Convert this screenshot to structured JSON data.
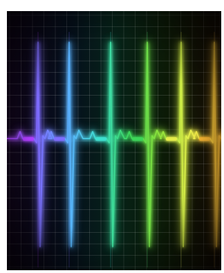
{
  "image": {
    "subject": "ecg-heartbeat-waveform",
    "background_color": "#050505",
    "grid_color": "#ffffff",
    "pulse_colors": [
      "#b03cff",
      "#7e6bff",
      "#5ab0ff",
      "#3ee0d0",
      "#3cd65a",
      "#8fe33a",
      "#e8f04a",
      "#f5b030"
    ]
  }
}
